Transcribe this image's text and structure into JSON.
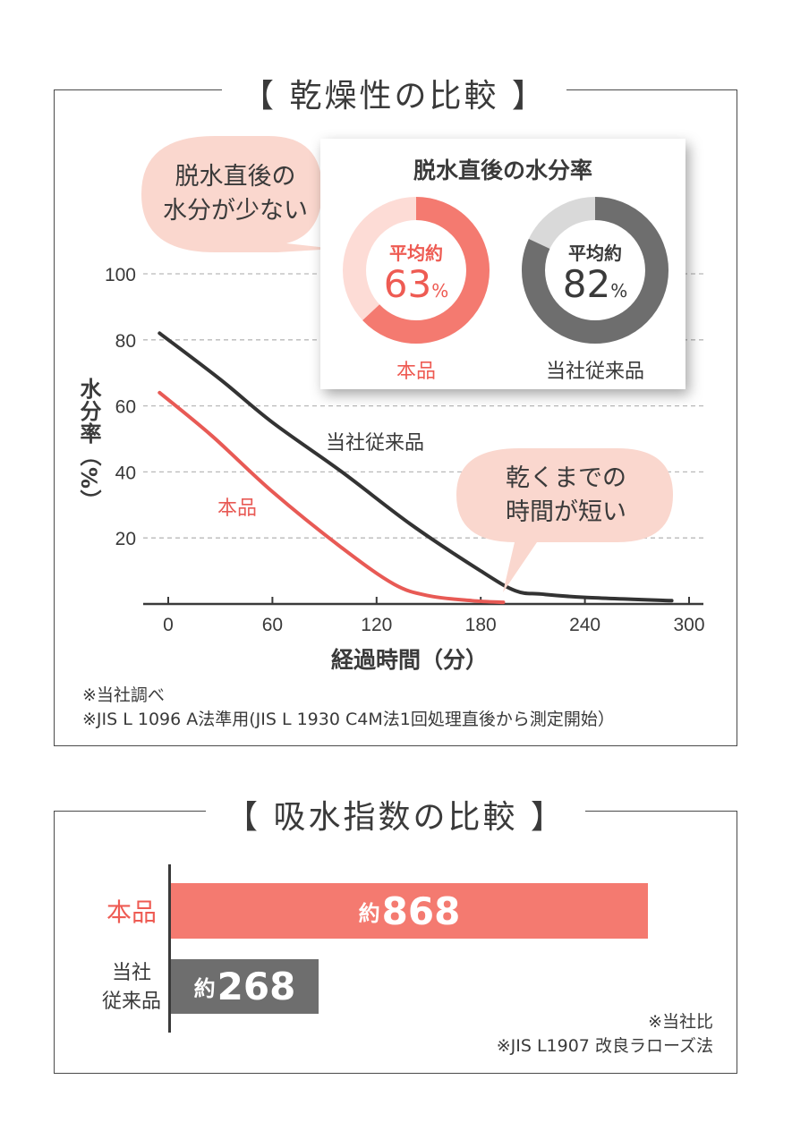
{
  "drying": {
    "title": "【 乾燥性の比較 】",
    "bubble_left": [
      "脱水直後の",
      "水分が少ない"
    ],
    "bubble_right": [
      "乾くまでの",
      "時間が短い"
    ],
    "notes": [
      "※当社調べ",
      "※JIS L 1096 A法準用(JIS L 1930 C4M法1回処理直後から測定開始）"
    ]
  },
  "card": {
    "title": "脱水直後の水分率",
    "donuts": [
      {
        "label": "本品",
        "caption": "平均約",
        "value": 63,
        "unit": "%",
        "color": "#f47a70",
        "track": "#fddcd6",
        "text_color": "#ee5b53"
      },
      {
        "label": "当社従来品",
        "caption": "平均約",
        "value": 82,
        "unit": "%",
        "color": "#6e6e6e",
        "track": "#d9d9d9",
        "text_color": "#3a3a3a"
      }
    ]
  },
  "chart_data": [
    {
      "type": "line",
      "xlabel": "経過時間（分）",
      "ylabel": "水分率（%）",
      "xlim": [
        -5,
        310
      ],
      "ylim": [
        0,
        100
      ],
      "x_ticks": [
        0,
        60,
        120,
        180,
        240,
        300
      ],
      "y_ticks": [
        20,
        40,
        60,
        80,
        100
      ],
      "grid": "horizontal dashed",
      "series": [
        {
          "name": "当社従来品",
          "color": "#333333",
          "x": [
            -5,
            30,
            60,
            100,
            140,
            180,
            200,
            215,
            240,
            290
          ],
          "y": [
            82,
            68,
            55,
            40,
            24,
            10,
            4,
            3,
            2,
            1
          ]
        },
        {
          "name": "本品",
          "color": "#e85a55",
          "x": [
            -5,
            25,
            60,
            100,
            130,
            150,
            175,
            193
          ],
          "y": [
            64,
            51,
            34,
            17,
            6,
            2.5,
            1,
            0.5
          ]
        }
      ]
    },
    {
      "type": "bar",
      "title": "【 吸水指数の比較 】",
      "categories": [
        "本品",
        "当社\n従来品"
      ],
      "values": [
        868,
        268
      ],
      "value_prefix": "約",
      "colors": [
        "#f47a70",
        "#6e6e6e"
      ],
      "label_colors": [
        "#ee5b53",
        "#3a3a3a"
      ],
      "notes": [
        "※当社比",
        "※JIS L1907 改良ラローズ法"
      ]
    }
  ]
}
